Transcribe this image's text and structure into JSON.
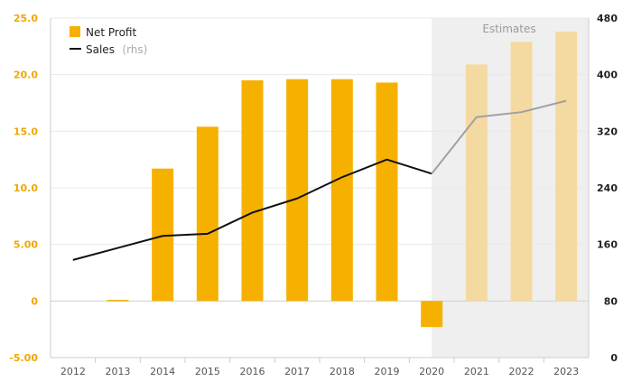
{
  "chart_data": {
    "type": "bar",
    "categories": [
      "2012",
      "2013",
      "2014",
      "2015",
      "2016",
      "2017",
      "2018",
      "2019",
      "2020",
      "2021",
      "2022",
      "2023"
    ],
    "series": [
      {
        "name": "Net Profit",
        "type": "bar",
        "axis": "left",
        "values": [
          0,
          0.1,
          11.7,
          15.4,
          19.5,
          19.6,
          19.6,
          19.3,
          -2.3,
          20.9,
          22.9,
          23.8
        ],
        "estimated": [
          false,
          false,
          false,
          false,
          false,
          false,
          false,
          false,
          false,
          true,
          true,
          true
        ],
        "color": "#f6b100",
        "estimate_color": "#f4daa0"
      },
      {
        "name": "Sales",
        "name_suffix": "(rhs)",
        "type": "line",
        "axis": "right",
        "values": [
          138,
          155,
          172,
          175,
          205,
          225,
          255,
          280,
          260,
          340,
          347,
          363
        ],
        "color": "#111111",
        "estimate_color": "#a0a0a0"
      }
    ],
    "yaxis_left": {
      "ylim": [
        -5,
        25
      ],
      "ticks": [
        25,
        20,
        15,
        10,
        5,
        0,
        -5
      ],
      "tick_labels": [
        "25.0",
        "20.0",
        "15.0",
        "10.0",
        "5.00",
        "0",
        "-5.00"
      ],
      "color": "#f0a800"
    },
    "yaxis_right": {
      "ylim": [
        0,
        480
      ],
      "ticks": [
        480,
        400,
        320,
        240,
        160,
        80,
        0
      ],
      "tick_labels": [
        "480",
        "400",
        "320",
        "240",
        "160",
        "80",
        "0"
      ]
    },
    "estimates_label": "Estimates",
    "estimates_region": [
      "2020",
      "2023"
    ],
    "estimates_shade": "#efefef",
    "grid": true,
    "legend": "top-left"
  }
}
